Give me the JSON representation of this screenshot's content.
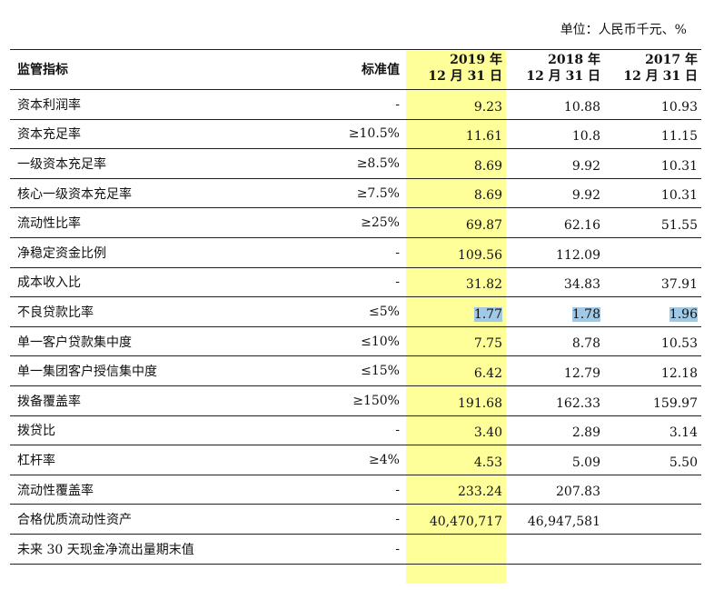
{
  "unit_label": "单位：人民币千元、%",
  "header": {
    "name": "监管指标",
    "standard": "标准值",
    "cols": [
      {
        "year": "2019 年",
        "date": "12 月 31 日"
      },
      {
        "year": "2018 年",
        "date": "12 月 31 日"
      },
      {
        "year": "2017 年",
        "date": "12 月 31 日"
      }
    ]
  },
  "rows": [
    {
      "name": "资本利润率",
      "std": "-",
      "v2019": "9.23",
      "v2018": "10.88",
      "v2017": "10.93"
    },
    {
      "name": "资本充足率",
      "std": "≥10.5%",
      "v2019": "11.61",
      "v2018": "10.8",
      "v2017": "11.15"
    },
    {
      "name": "一级资本充足率",
      "std": "≥8.5%",
      "v2019": "8.69",
      "v2018": "9.92",
      "v2017": "10.31"
    },
    {
      "name": "核心一级资本充足率",
      "std": "≥7.5%",
      "v2019": "8.69",
      "v2018": "9.92",
      "v2017": "10.31"
    },
    {
      "name": "流动性比率",
      "std": "≥25%",
      "v2019": "69.87",
      "v2018": "62.16",
      "v2017": "51.55"
    },
    {
      "name": "净稳定资金比例",
      "std": "-",
      "v2019": "109.56",
      "v2018": "112.09",
      "v2017": ""
    },
    {
      "name": "成本收入比",
      "std": "-",
      "v2019": "31.82",
      "v2018": "34.83",
      "v2017": "37.91"
    },
    {
      "name": "不良贷款比率",
      "std": "≤5%",
      "v2019": "1.77",
      "v2018": "1.78",
      "v2017": "1.96"
    },
    {
      "name": "单一客户贷款集中度",
      "std": "≤10%",
      "v2019": "7.75",
      "v2018": "8.78",
      "v2017": "10.53"
    },
    {
      "name": "单一集团客户授信集中度",
      "std": "≤15%",
      "v2019": "6.42",
      "v2018": "12.79",
      "v2017": "12.18"
    },
    {
      "name": "拨备覆盖率",
      "std": "≥150%",
      "v2019": "191.68",
      "v2018": "162.33",
      "v2017": "159.97"
    },
    {
      "name": "拨贷比",
      "std": "-",
      "v2019": "3.40",
      "v2018": "2.89",
      "v2017": "3.14"
    },
    {
      "name": "杠杆率",
      "std": "≥4%",
      "v2019": "4.53",
      "v2018": "5.09",
      "v2017": "5.50"
    },
    {
      "name": "流动性覆盖率",
      "std": "-",
      "v2019": "233.24",
      "v2018": "207.83",
      "v2017": ""
    },
    {
      "name": "合格优质流动性资产",
      "std": "-",
      "v2019": "40,470,717",
      "v2018": "46,947,581",
      "v2017": ""
    },
    {
      "name": "未来 30 天现金净流出量期末值",
      "std": "-",
      "v2019": "",
      "v2018": "",
      "v2017": ""
    }
  ],
  "colors": {
    "highlight": "#ffff99",
    "selection": "#9fc9e6"
  }
}
